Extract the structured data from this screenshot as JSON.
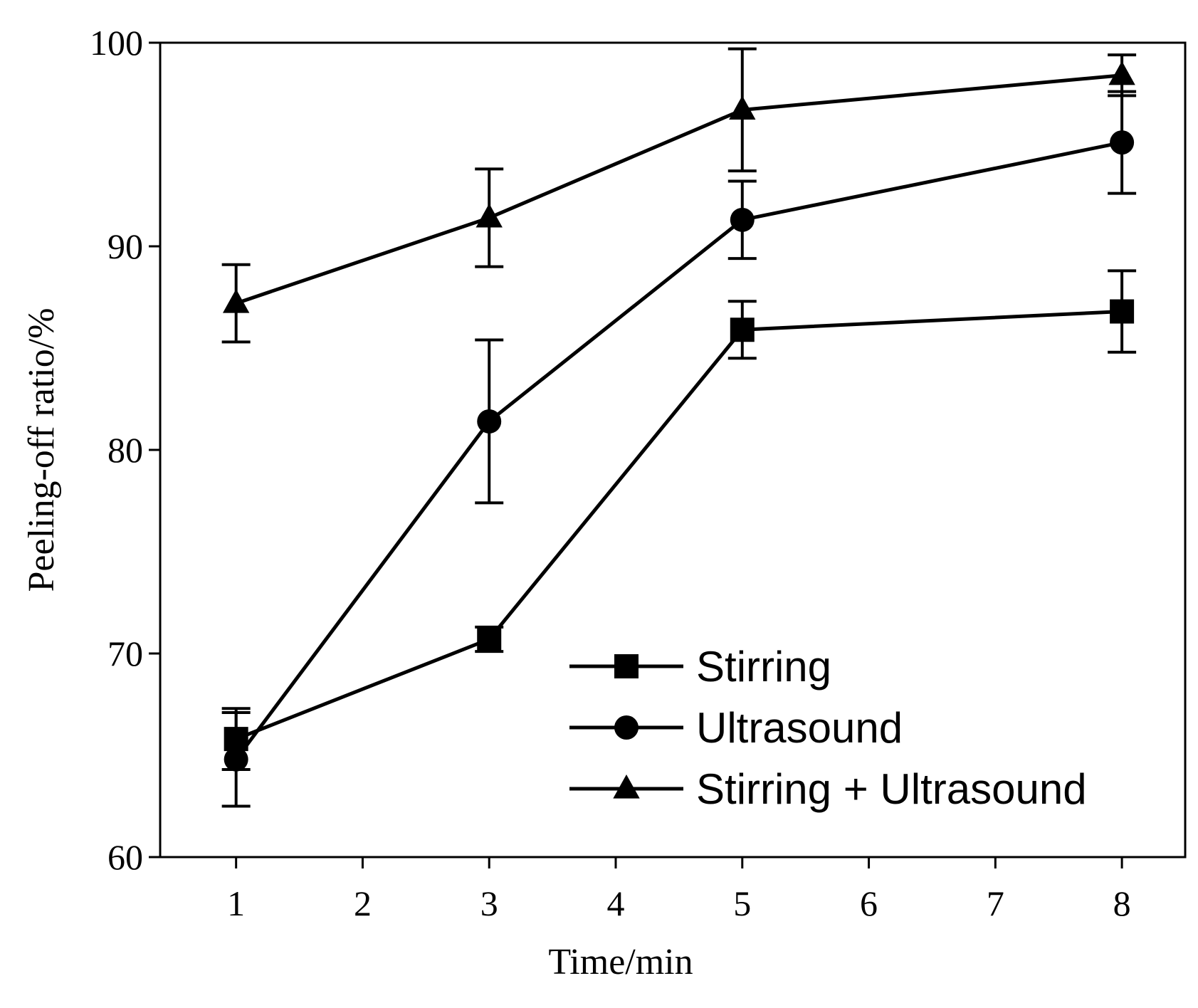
{
  "chart_data": {
    "type": "line",
    "title": "",
    "xlabel": "Time/min",
    "ylabel": "Peeling-off ratio/%",
    "xlim": [
      0.4,
      8.5
    ],
    "ylim": [
      60,
      100
    ],
    "xticks": [
      1,
      2,
      3,
      4,
      5,
      6,
      7,
      8
    ],
    "yticks": [
      60,
      70,
      80,
      90,
      100
    ],
    "legend_position": "bottom-right",
    "grid": false,
    "x": [
      1,
      3,
      5,
      8
    ],
    "series": [
      {
        "name": "Stirring",
        "marker": "square",
        "values": [
          65.8,
          70.7,
          85.9,
          86.8
        ],
        "errors": [
          1.5,
          0.6,
          1.4,
          2.0
        ]
      },
      {
        "name": "Ultrasound",
        "marker": "circle",
        "values": [
          64.8,
          81.4,
          91.3,
          95.1
        ],
        "errors": [
          2.3,
          4.0,
          1.9,
          2.5
        ]
      },
      {
        "name": "Stirring + Ultrasound",
        "marker": "triangle",
        "values": [
          87.2,
          91.4,
          96.7,
          98.4
        ],
        "errors": [
          1.9,
          2.4,
          3.0,
          1.0
        ]
      }
    ]
  }
}
